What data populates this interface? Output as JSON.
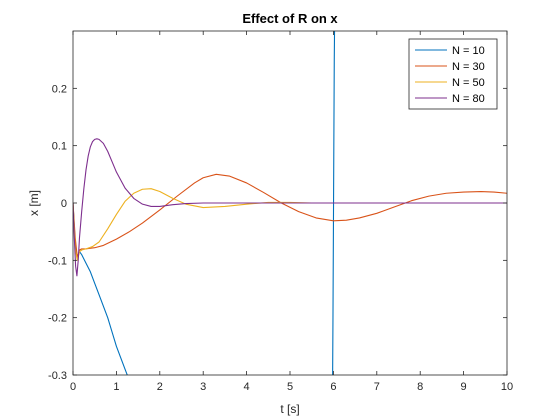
{
  "chart_data": {
    "type": "line",
    "title": "Effect of R on x",
    "xlabel": "t [s]",
    "ylabel": "x [m]",
    "xlim": [
      0,
      10
    ],
    "ylim": [
      -0.3,
      0.3
    ],
    "xticks": [
      0,
      1,
      2,
      3,
      4,
      5,
      6,
      7,
      8,
      9,
      10
    ],
    "xtick_labels": [
      "0",
      "1",
      "2",
      "3",
      "4",
      "5",
      "6",
      "7",
      "8",
      "9",
      "10"
    ],
    "yticks": [
      -0.3,
      -0.2,
      -0.1,
      0,
      0.1,
      0.2
    ],
    "ytick_labels": [
      "-0.3",
      "-0.2",
      "-0.1",
      "0",
      "0.1",
      "0.2"
    ],
    "grid": false,
    "legend_position": "top-right",
    "series": [
      {
        "name": "N = 10",
        "color": "#0072BD",
        "x": [
          0,
          0.05,
          0.1,
          0.15,
          0.2,
          0.3,
          0.4,
          0.5,
          0.6,
          0.7,
          0.8,
          0.9,
          1.0,
          1.1,
          1.2,
          1.3,
          1.32,
          1.34
        ],
        "y": [
          0,
          -0.07,
          -0.095,
          -0.085,
          -0.09,
          -0.105,
          -0.12,
          -0.14,
          -0.16,
          -0.18,
          -0.2,
          -0.225,
          -0.25,
          -0.27,
          -0.29,
          -0.31,
          -0.318,
          -0.33
        ]
      },
      {
        "name": "N = 10",
        "color": "#0072BD",
        "x": [
          5.98,
          5.99,
          6.0,
          6.01,
          6.02,
          6.03
        ],
        "y": [
          -0.33,
          -0.2,
          -0.05,
          0.1,
          0.25,
          0.33
        ]
      },
      {
        "name": "N = 30",
        "color": "#D95319",
        "x": [
          0,
          0.05,
          0.1,
          0.15,
          0.2,
          0.3,
          0.5,
          0.7,
          1.0,
          1.3,
          1.6,
          2.0,
          2.4,
          2.8,
          3.0,
          3.3,
          3.6,
          4.0,
          4.4,
          4.8,
          5.2,
          5.6,
          6.0,
          6.3,
          6.6,
          7.0,
          7.4,
          7.8,
          8.2,
          8.6,
          9.0,
          9.4,
          9.7,
          10.0
        ],
        "y": [
          0,
          -0.06,
          -0.095,
          -0.082,
          -0.08,
          -0.08,
          -0.078,
          -0.074,
          -0.063,
          -0.05,
          -0.035,
          -0.012,
          0.012,
          0.035,
          0.044,
          0.05,
          0.047,
          0.035,
          0.018,
          0.0,
          -0.015,
          -0.026,
          -0.031,
          -0.03,
          -0.026,
          -0.018,
          -0.007,
          0.004,
          0.012,
          0.017,
          0.019,
          0.02,
          0.019,
          0.017
        ]
      },
      {
        "name": "N = 50",
        "color": "#EDB120",
        "x": [
          0,
          0.05,
          0.1,
          0.15,
          0.2,
          0.3,
          0.45,
          0.6,
          0.8,
          1.0,
          1.2,
          1.4,
          1.6,
          1.8,
          2.0,
          2.3,
          2.6,
          3.0,
          3.5,
          4.0,
          4.5,
          5.0,
          5.5,
          6.0,
          7.0,
          8.0,
          9.0,
          10.0
        ],
        "y": [
          0,
          -0.08,
          -0.1,
          -0.085,
          -0.082,
          -0.08,
          -0.076,
          -0.068,
          -0.045,
          -0.02,
          0.003,
          0.017,
          0.024,
          0.025,
          0.02,
          0.008,
          -0.002,
          -0.008,
          -0.006,
          -0.002,
          0.001,
          0.001,
          0.0,
          0.0,
          0.0,
          0.0,
          0.0,
          0.0
        ]
      },
      {
        "name": "N = 80",
        "color": "#7E2F8E",
        "x": [
          0,
          0.03,
          0.06,
          0.09,
          0.12,
          0.15,
          0.2,
          0.25,
          0.3,
          0.35,
          0.4,
          0.45,
          0.5,
          0.55,
          0.6,
          0.7,
          0.8,
          0.9,
          1.0,
          1.2,
          1.4,
          1.6,
          1.8,
          2.0,
          2.3,
          2.6,
          3.0,
          3.5,
          4.0,
          5.0,
          6.0,
          7.0,
          8.0,
          9.0,
          10.0
        ],
        "y": [
          0,
          -0.06,
          -0.11,
          -0.127,
          -0.1,
          -0.06,
          -0.015,
          0.025,
          0.058,
          0.082,
          0.098,
          0.107,
          0.111,
          0.112,
          0.111,
          0.104,
          0.09,
          0.072,
          0.054,
          0.026,
          0.008,
          -0.002,
          -0.006,
          -0.006,
          -0.003,
          -0.001,
          0.0,
          0.0,
          0.0,
          0.0,
          0.0,
          0.0,
          0.0,
          0.0,
          0.0
        ]
      }
    ]
  }
}
